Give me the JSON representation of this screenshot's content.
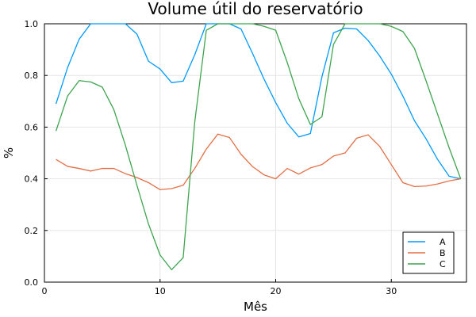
{
  "chart_data": {
    "type": "line",
    "title": "Volume útil do reservatório",
    "xlabel": "Mês",
    "ylabel": "%",
    "xlim": [
      0,
      36.5
    ],
    "ylim": [
      0,
      1.0
    ],
    "xticks": [
      0,
      10,
      20,
      30
    ],
    "yticks": [
      0.0,
      0.2,
      0.4,
      0.6,
      0.8,
      1.0
    ],
    "xtick_labels": [
      "0",
      "10",
      "20",
      "30"
    ],
    "ytick_labels": [
      "0.0",
      "0.2",
      "0.4",
      "0.6",
      "0.8",
      "1.0"
    ],
    "grid": true,
    "legend_position": "bottom-right",
    "x": [
      1,
      2,
      3,
      4,
      5,
      6,
      7,
      8,
      9,
      10,
      11,
      12,
      13,
      14,
      15,
      16,
      17,
      18,
      19,
      20,
      21,
      22,
      23,
      24,
      25,
      26,
      27,
      28,
      29,
      30,
      31,
      32,
      33,
      34,
      35,
      36
    ],
    "series": [
      {
        "name": "A",
        "color": "#009AFA",
        "values": [
          0.69,
          0.83,
          0.94,
          1.0,
          1.0,
          1.0,
          1.0,
          0.96,
          0.855,
          0.825,
          0.772,
          0.778,
          0.88,
          1.0,
          1.0,
          1.0,
          0.98,
          0.885,
          0.785,
          0.695,
          0.615,
          0.562,
          0.575,
          0.795,
          0.965,
          0.983,
          0.98,
          0.935,
          0.875,
          0.805,
          0.72,
          0.625,
          0.555,
          0.475,
          0.41,
          0.4
        ]
      },
      {
        "name": "B",
        "color": "#E36F47",
        "values": [
          0.475,
          0.448,
          0.44,
          0.43,
          0.44,
          0.44,
          0.42,
          0.405,
          0.385,
          0.358,
          0.362,
          0.375,
          0.44,
          0.515,
          0.573,
          0.56,
          0.495,
          0.447,
          0.415,
          0.4,
          0.44,
          0.418,
          0.442,
          0.455,
          0.488,
          0.5,
          0.557,
          0.57,
          0.525,
          0.455,
          0.385,
          0.37,
          0.372,
          0.38,
          0.392,
          0.4
        ]
      },
      {
        "name": "C",
        "color": "#3EA44E",
        "values": [
          0.585,
          0.72,
          0.78,
          0.775,
          0.755,
          0.668,
          0.53,
          0.375,
          0.225,
          0.105,
          0.048,
          0.095,
          0.62,
          0.975,
          1.0,
          1.0,
          1.0,
          1.0,
          0.99,
          0.975,
          0.85,
          0.71,
          0.61,
          0.64,
          0.92,
          1.0,
          1.0,
          1.0,
          1.0,
          0.99,
          0.97,
          0.905,
          0.78,
          0.65,
          0.52,
          0.4
        ]
      }
    ]
  }
}
